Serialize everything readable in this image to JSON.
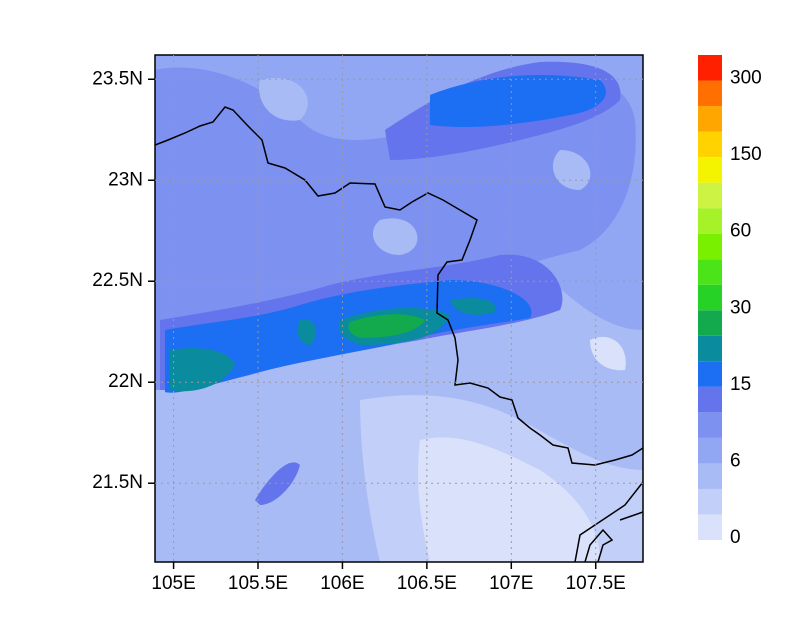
{
  "chart_data": {
    "type": "map",
    "xlim": [
      104.89,
      107.78
    ],
    "ylim": [
      21.11,
      23.62
    ],
    "xticks": [
      {
        "value": 105,
        "label": "105E"
      },
      {
        "value": 105.5,
        "label": "105.5E"
      },
      {
        "value": 106,
        "label": "106E"
      },
      {
        "value": 106.5,
        "label": "106.5E"
      },
      {
        "value": 107,
        "label": "107E"
      },
      {
        "value": 107.5,
        "label": "107.5E"
      }
    ],
    "yticks": [
      {
        "value": 21.5,
        "label": "21.5N"
      },
      {
        "value": 22,
        "label": "22N"
      },
      {
        "value": 22.5,
        "label": "22.5N"
      },
      {
        "value": 23,
        "label": "23N"
      },
      {
        "value": 23.5,
        "label": "23.5N"
      }
    ],
    "grid": true,
    "colorbar": {
      "colors": [
        "#dae2fb",
        "#c2cff8",
        "#a9bbf5",
        "#91a7f3",
        "#7d92f0",
        "#6374ec",
        "#1c6ef2",
        "#0a8c9e",
        "#12aa4c",
        "#26d226",
        "#4ae418",
        "#78f000",
        "#a6f228",
        "#cdf444",
        "#f4f400",
        "#ffd200",
        "#ffa600",
        "#ff7000",
        "#ff2000"
      ],
      "ticks": [
        0,
        6,
        15,
        30,
        60,
        150,
        300
      ]
    }
  }
}
